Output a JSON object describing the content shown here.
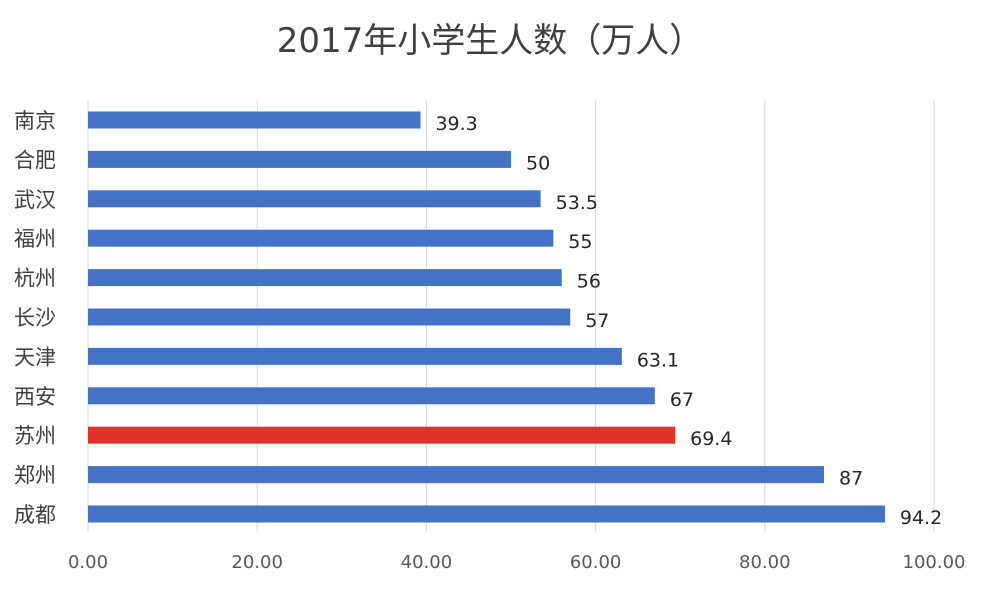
{
  "chart_data": {
    "type": "bar",
    "orientation": "horizontal",
    "title": "2017年小学生人数（万人）",
    "categories": [
      "南京",
      "合肥",
      "武汉",
      "福州",
      "杭州",
      "长沙",
      "天津",
      "西安",
      "苏州",
      "郑州",
      "成都"
    ],
    "values": [
      39.3,
      50,
      53.5,
      55,
      56,
      57,
      63.1,
      67,
      69.4,
      87,
      94.2
    ],
    "data_labels": [
      "39.3",
      "50",
      "53.5",
      "55",
      "56",
      "57",
      "63.1",
      "67",
      "69.4",
      "87",
      "94.2"
    ],
    "xlim": [
      0,
      100
    ],
    "xticks": [
      "0.00",
      "20.00",
      "40.00",
      "60.00",
      "80.00",
      "100.00"
    ],
    "grid": "vertical",
    "colors": {
      "default": "#4472c4",
      "highlight": "#e0312a",
      "highlight_category": "苏州"
    }
  }
}
